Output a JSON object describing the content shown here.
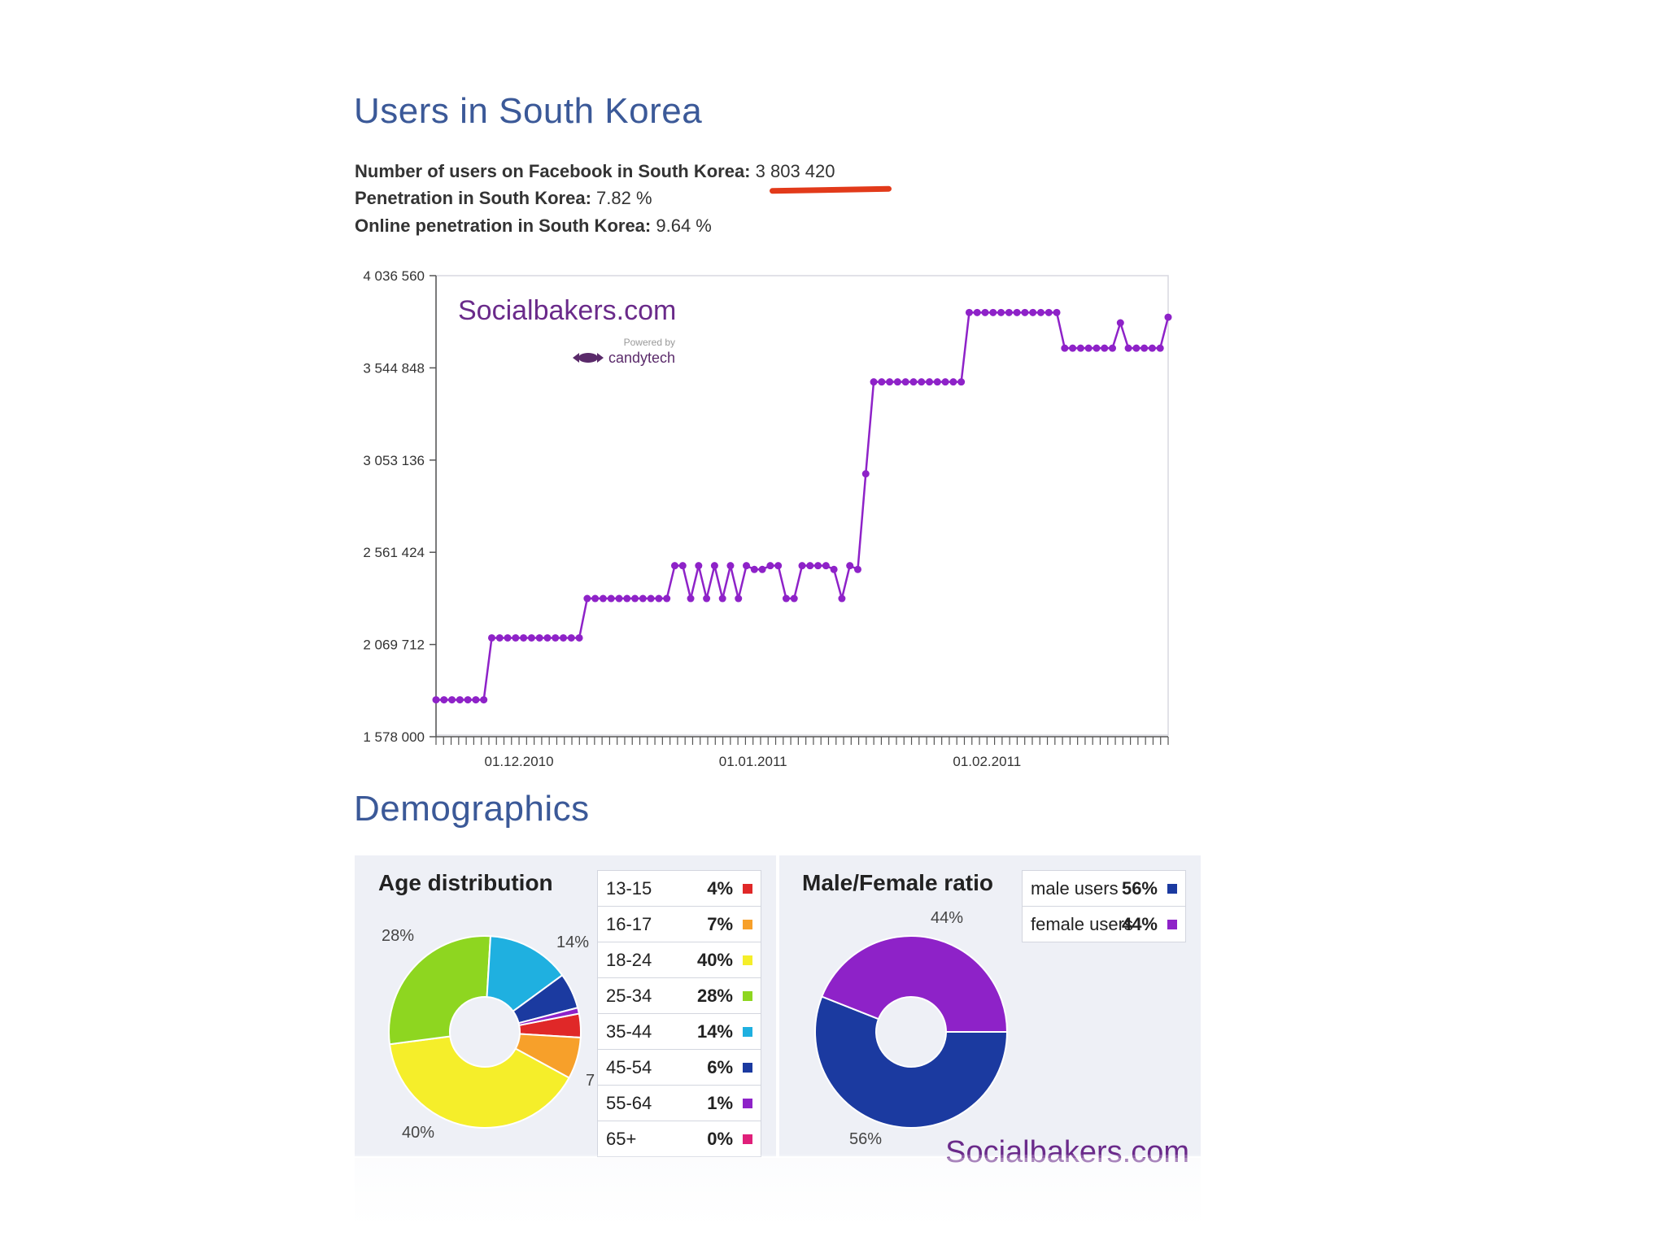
{
  "header": {
    "title": "Users in South Korea"
  },
  "stats": [
    {
      "label": "Number of users on Facebook in South Korea:",
      "value": "3 803 420"
    },
    {
      "label": "Penetration in South Korea:",
      "value": "7.82 %"
    },
    {
      "label": "Online penetration in South Korea:",
      "value": "9.64 %"
    }
  ],
  "accent": "#3b5998",
  "line_color": "#8e22c8",
  "watermark": {
    "brand": "Socialbakers.com",
    "powered_by": "Powered by",
    "partner": "candytech"
  },
  "demographics": {
    "title": "Demographics",
    "age_panel": {
      "title": "Age distribution",
      "callouts": [
        "28%",
        "14%",
        "40%",
        "7"
      ],
      "rows": [
        {
          "label": "13-15",
          "pct": "4%",
          "color": "#e02828"
        },
        {
          "label": "16-17",
          "pct": "7%",
          "color": "#f7a02a"
        },
        {
          "label": "18-24",
          "pct": "40%",
          "color": "#f5ee2a"
        },
        {
          "label": "25-34",
          "pct": "28%",
          "color": "#8ed620"
        },
        {
          "label": "35-44",
          "pct": "14%",
          "color": "#1fb0e0"
        },
        {
          "label": "45-54",
          "pct": "6%",
          "color": "#1b3aa0"
        },
        {
          "label": "55-64",
          "pct": "1%",
          "color": "#8e22c8"
        },
        {
          "label": "65+",
          "pct": "0%",
          "color": "#e0207a"
        }
      ]
    },
    "gender_panel": {
      "title": "Male/Female ratio",
      "callouts": [
        "44%",
        "56%"
      ],
      "rows": [
        {
          "label": "male users",
          "pct": "56%",
          "color": "#1b3aa0"
        },
        {
          "label": "female users",
          "pct": "44%",
          "color": "#8e22c8"
        }
      ],
      "watermark": "Socialbakers.com"
    }
  },
  "chart_data": [
    {
      "type": "line",
      "title": "",
      "xlabel": "",
      "ylabel": "",
      "ylim": [
        1578000,
        4036560
      ],
      "yticks": [
        "1 578 000",
        "2 069 712",
        "2 561 424",
        "3 053 136",
        "3 544 848",
        "4 036 560"
      ],
      "xtick_labels": [
        "01.12.2010",
        "01.01.2011",
        "01.02.2011"
      ],
      "x_start": "2010-11-20",
      "x_end": "2011-02-25",
      "grid": false,
      "series": [
        {
          "values": [
            1775000,
            1775000,
            1775000,
            1775000,
            1775000,
            1775000,
            1775000,
            2105000,
            2105000,
            2105000,
            2105000,
            2105000,
            2105000,
            2105000,
            2105000,
            2105000,
            2105000,
            2105000,
            2105000,
            2315000,
            2315000,
            2315000,
            2315000,
            2315000,
            2315000,
            2315000,
            2315000,
            2315000,
            2315000,
            2315000,
            2490000,
            2490000,
            2315000,
            2490000,
            2315000,
            2490000,
            2315000,
            2490000,
            2315000,
            2490000,
            2470000,
            2470000,
            2490000,
            2490000,
            2315000,
            2315000,
            2490000,
            2490000,
            2490000,
            2490000,
            2470000,
            2315000,
            2490000,
            2470000,
            2980000,
            3470000,
            3470000,
            3470000,
            3470000,
            3470000,
            3470000,
            3470000,
            3470000,
            3470000,
            3470000,
            3470000,
            3470000,
            3840000,
            3840000,
            3840000,
            3840000,
            3840000,
            3840000,
            3840000,
            3840000,
            3840000,
            3840000,
            3840000,
            3840000,
            3650000,
            3650000,
            3650000,
            3650000,
            3650000,
            3650000,
            3650000,
            3785000,
            3650000,
            3650000,
            3650000,
            3650000,
            3650000,
            3815000
          ]
        }
      ]
    },
    {
      "type": "pie",
      "title": "Age distribution",
      "categories": [
        "13-15",
        "16-17",
        "18-24",
        "25-34",
        "35-44",
        "45-54",
        "55-64",
        "65+"
      ],
      "values": [
        4,
        7,
        40,
        28,
        14,
        6,
        1,
        0
      ]
    },
    {
      "type": "pie",
      "title": "Male/Female ratio",
      "categories": [
        "male users",
        "female users"
      ],
      "values": [
        56,
        44
      ]
    }
  ]
}
